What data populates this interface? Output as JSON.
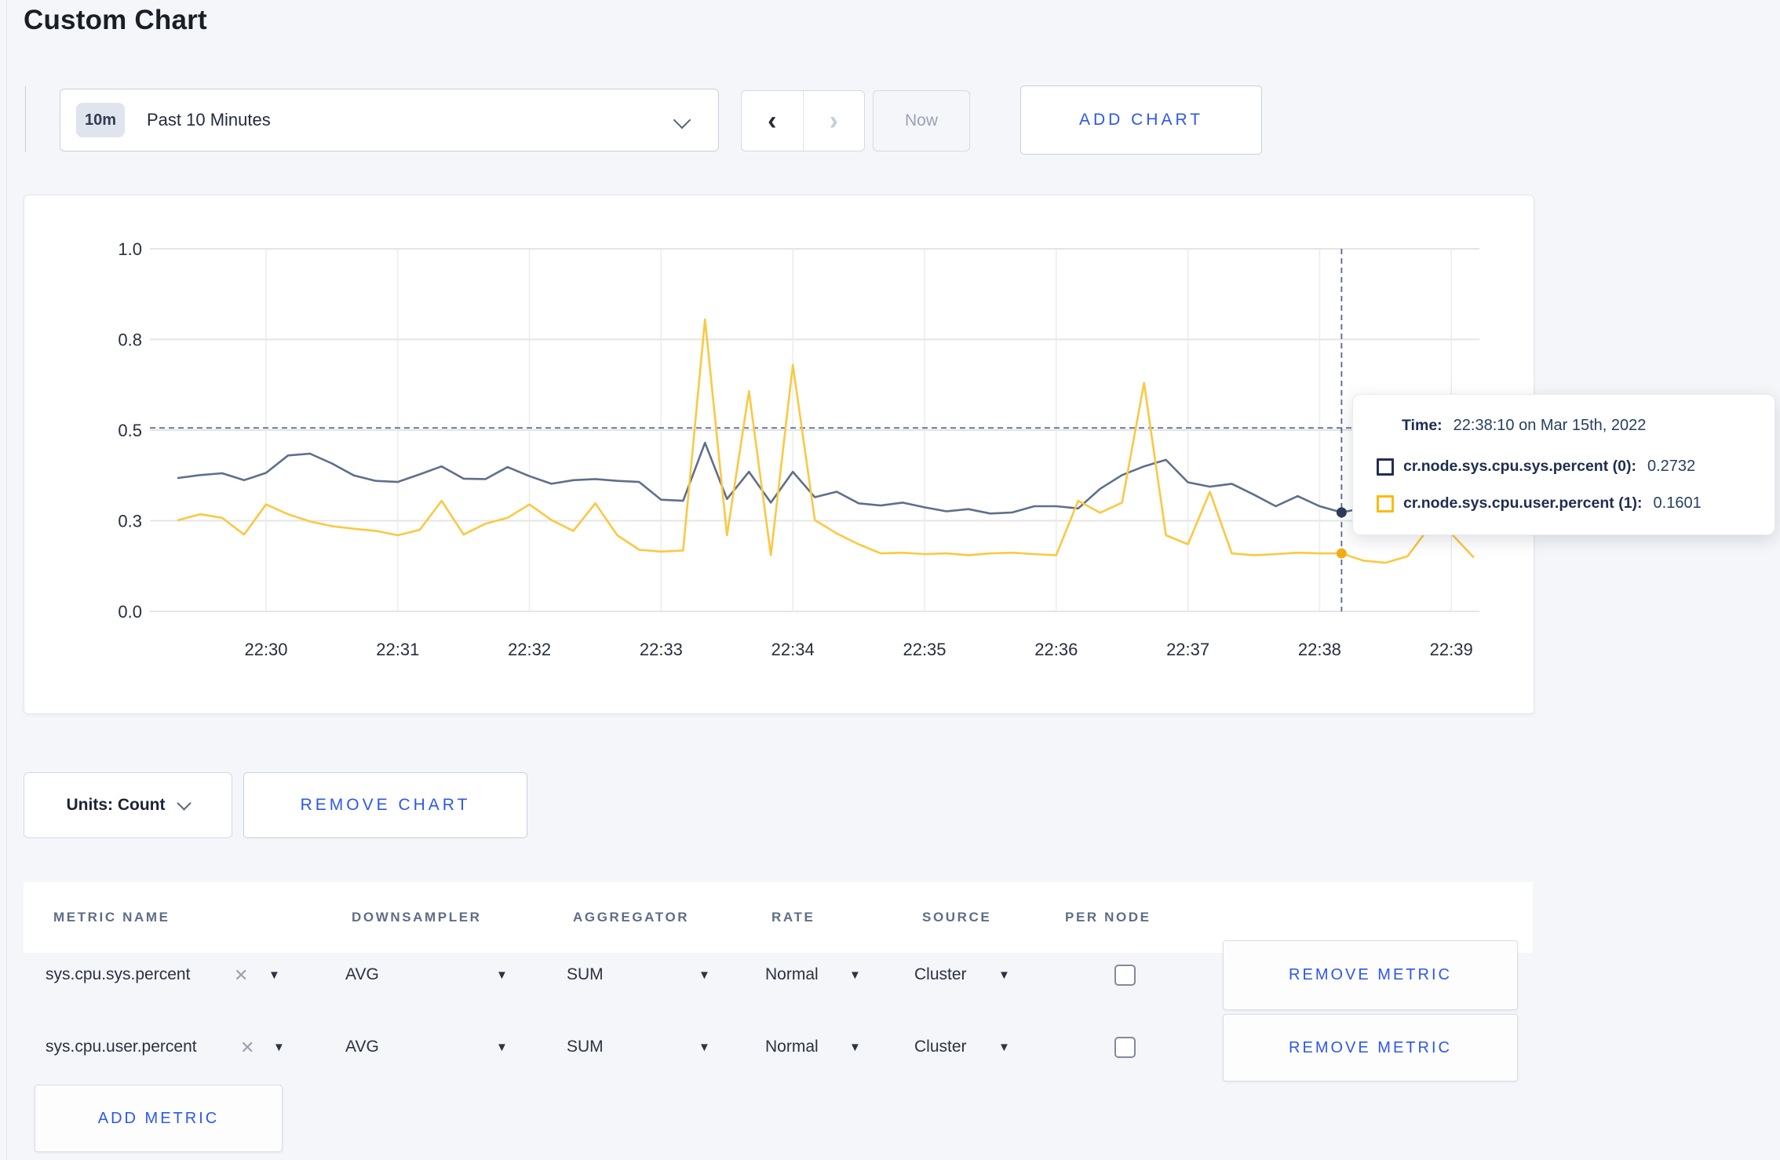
{
  "page": {
    "title": "Custom Chart",
    "background": "#f4f6f9",
    "accent_blue": "#2c57ee"
  },
  "icons": {
    "prev": "‹",
    "next": "›",
    "close": "✕",
    "caret_down": "▼",
    "chevron_down": "css-chevron"
  },
  "toolbar": {
    "timeframe": {
      "badge": "10m",
      "label": "Past 10 Minutes"
    },
    "now_label": "Now",
    "add_chart_label": "ADD CHART"
  },
  "chart_controls": {
    "units_label": "Units: Count",
    "remove_chart_label": "REMOVE CHART"
  },
  "chart_data": {
    "type": "line",
    "title": "",
    "xlabel": "",
    "ylabel": "",
    "ylim": [
      0,
      1
    ],
    "grid": true,
    "yticks": [
      0,
      0.25,
      0.5,
      0.75,
      1.0
    ],
    "yticklabels": [
      "0.0",
      "0.3",
      "0.5",
      "0.8",
      "1.0"
    ],
    "xticklabels": [
      "22:30",
      "22:31",
      "22:32",
      "22:33",
      "22:34",
      "22:35",
      "22:36",
      "22:37",
      "22:38",
      "22:39"
    ],
    "x_start_seconds": -40,
    "x_interval_seconds": 10,
    "series": [
      {
        "name": "cr.node.sys.cpu.sys.percent",
        "color": "#5e6f8a",
        "values": [
          0.368,
          0.376,
          0.381,
          0.362,
          0.382,
          0.43,
          0.435,
          0.408,
          0.375,
          0.36,
          0.357,
          0.378,
          0.4,
          0.366,
          0.365,
          0.398,
          0.373,
          0.352,
          0.362,
          0.365,
          0.36,
          0.357,
          0.308,
          0.305,
          0.465,
          0.31,
          0.385,
          0.3,
          0.385,
          0.315,
          0.33,
          0.298,
          0.292,
          0.3,
          0.287,
          0.276,
          0.282,
          0.27,
          0.273,
          0.29,
          0.29,
          0.284,
          0.338,
          0.376,
          0.4,
          0.418,
          0.356,
          0.344,
          0.352,
          0.322,
          0.29,
          0.318,
          0.29,
          0.273,
          0.285,
          0.28,
          0.285,
          0.29,
          0.295,
          0.285
        ]
      },
      {
        "name": "cr.node.sys.cpu.user.percent",
        "color": "#fbc842",
        "values": [
          0.252,
          0.268,
          0.258,
          0.212,
          0.295,
          0.268,
          0.248,
          0.235,
          0.228,
          0.222,
          0.21,
          0.225,
          0.305,
          0.212,
          0.242,
          0.258,
          0.295,
          0.252,
          0.222,
          0.298,
          0.21,
          0.17,
          0.165,
          0.168,
          0.805,
          0.21,
          0.607,
          0.155,
          0.68,
          0.252,
          0.215,
          0.185,
          0.16,
          0.162,
          0.158,
          0.16,
          0.155,
          0.16,
          0.162,
          0.158,
          0.155,
          0.305,
          0.272,
          0.3,
          0.63,
          0.21,
          0.185,
          0.33,
          0.16,
          0.155,
          0.158,
          0.162,
          0.16,
          0.16,
          0.14,
          0.134,
          0.152,
          0.232,
          0.215,
          0.15
        ]
      }
    ],
    "crosshair": {
      "seconds_from_first_tick": 490,
      "time": "22:38:10",
      "y_value": 0.506,
      "points": [
        {
          "value": 0.273,
          "color": "#2e3a5c"
        },
        {
          "value": 0.16,
          "color": "#f0ad17"
        }
      ]
    },
    "legend_position": "tooltip"
  },
  "tooltip": {
    "time_label": "Time:",
    "time_value": "22:38:10 on Mar 15th, 2022",
    "rows": [
      {
        "label": "cr.node.sys.cpu.sys.percent (0):",
        "value": "0.2732",
        "color": "#232e55"
      },
      {
        "label": "cr.node.sys.cpu.user.percent (1):",
        "value": "0.1601",
        "color": "#fdba12"
      }
    ]
  },
  "metrics_table": {
    "headers": [
      "METRIC NAME",
      "DOWNSAMPLER",
      "AGGREGATOR",
      "RATE",
      "SOURCE",
      "PER NODE"
    ],
    "rows": [
      {
        "name": "sys.cpu.sys.percent",
        "downsampler": "AVG",
        "aggregator": "SUM",
        "rate": "Normal",
        "source": "Cluster",
        "per_node_checked": false,
        "remove_label": "REMOVE METRIC"
      },
      {
        "name": "sys.cpu.user.percent",
        "downsampler": "AVG",
        "aggregator": "SUM",
        "rate": "Normal",
        "source": "Cluster",
        "per_node_checked": false,
        "remove_label": "REMOVE METRIC"
      }
    ],
    "add_metric_label": "ADD METRIC"
  }
}
